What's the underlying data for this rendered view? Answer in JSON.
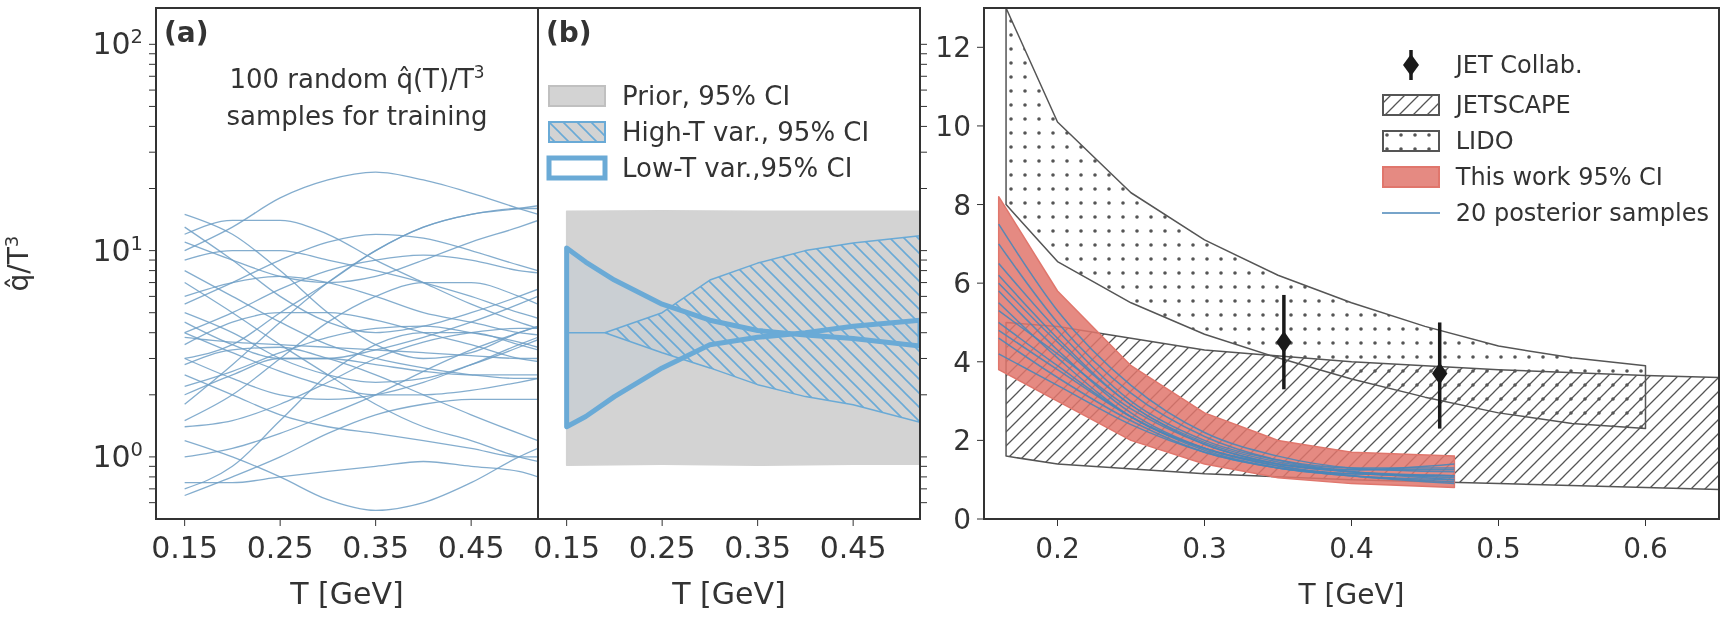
{
  "chart_data": [
    {
      "type": "line",
      "title": "(a)",
      "annotations": [
        "100 random q̂(T)/T$^{3}$",
        "samples for training"
      ],
      "xlabel": "T [GeV]",
      "ylabel": "q̂/T$^{3}$",
      "log": true,
      "legend": false,
      "x": [
        0.15,
        0.2,
        0.25,
        0.3,
        0.35,
        0.4,
        0.45,
        0.5,
        0.52
      ],
      "xlim": [
        0.12,
        0.52
      ],
      "xticks": [
        0.15,
        0.25,
        0.35,
        0.45
      ],
      "ylim": [
        0.5,
        150
      ],
      "yticks": [
        {
          "value": 1,
          "label": "10$^{0}$"
        },
        {
          "value": 10,
          "label": "10$^{1}$"
        },
        {
          "value": 100,
          "label": "10$^{2}$"
        },
        {
          "value": 0.6,
          "label": null
        },
        {
          "value": 0.7,
          "label": null
        },
        {
          "value": 0.8,
          "label": null
        },
        {
          "value": 0.9,
          "label": null
        },
        {
          "value": 2,
          "label": null
        },
        {
          "value": 3,
          "label": null
        },
        {
          "value": 4,
          "label": null
        },
        {
          "value": 5,
          "label": null
        },
        {
          "value": 6,
          "label": null
        },
        {
          "value": 7,
          "label": null
        },
        {
          "value": 8,
          "label": null
        },
        {
          "value": 9,
          "label": null
        },
        {
          "value": 20,
          "label": null
        },
        {
          "value": 30,
          "label": null
        },
        {
          "value": 40,
          "label": null
        },
        {
          "value": 50,
          "label": null
        },
        {
          "value": 60,
          "label": null
        },
        {
          "value": 70,
          "label": null
        },
        {
          "value": 80,
          "label": null
        },
        {
          "value": 90,
          "label": null
        }
      ],
      "series": [
        {
          "color": "#6f9fc6",
          "values": [
            4,
            5,
            6.5,
            8,
            9,
            9.5,
            9,
            8,
            7.8
          ]
        },
        {
          "color": "#6f9fc6",
          "values": [
            15,
            12,
            8,
            5,
            3.5,
            3,
            3.2,
            4,
            4.3
          ]
        },
        {
          "color": "#6f9fc6",
          "values": [
            0.7,
            0.9,
            1.5,
            2.5,
            3.5,
            4,
            4,
            3.5,
            3.3
          ]
        },
        {
          "color": "#6f9fc6",
          "values": [
            2,
            2.5,
            3,
            3,
            2.8,
            2.6,
            2.5,
            2.5,
            2.5
          ]
        },
        {
          "color": "#6f9fc6",
          "values": [
            10,
            13,
            18,
            22,
            24,
            22,
            19,
            16,
            15
          ]
        },
        {
          "color": "#6f9fc6",
          "values": [
            1.2,
            1,
            0.8,
            0.62,
            0.55,
            0.6,
            0.75,
            1,
            1.1
          ]
        },
        {
          "color": "#6f9fc6",
          "values": [
            5,
            4,
            3,
            2.5,
            2.3,
            2.4,
            2.8,
            3.4,
            3.7
          ]
        },
        {
          "color": "#6f9fc6",
          "values": [
            3,
            3.5,
            5,
            7,
            10,
            13,
            15,
            16,
            16
          ]
        },
        {
          "color": "#6f9fc6",
          "values": [
            8,
            6,
            4.5,
            3.5,
            3,
            2.7,
            2.5,
            2.4,
            2.4
          ]
        },
        {
          "color": "#6f9fc6",
          "values": [
            1.5,
            2,
            3,
            4.5,
            6,
            7,
            7,
            6,
            5.5
          ]
        },
        {
          "color": "#6f9fc6",
          "values": [
            0.65,
            0.8,
            1,
            1.3,
            1.6,
            1.8,
            1.9,
            1.9,
            1.9
          ]
        },
        {
          "color": "#6f9fc6",
          "values": [
            12,
            14,
            14,
            12,
            9,
            7,
            5.5,
            4.5,
            4.2
          ]
        },
        {
          "color": "#6f9fc6",
          "values": [
            4.5,
            3.5,
            3,
            3,
            3.3,
            3.8,
            4.5,
            5.5,
            6
          ]
        },
        {
          "color": "#6f9fc6",
          "values": [
            2.5,
            2,
            1.6,
            1.4,
            1.3,
            1.2,
            1.1,
            1,
            1
          ]
        },
        {
          "color": "#6f9fc6",
          "values": [
            6,
            7,
            7.5,
            7,
            6,
            5,
            4.5,
            4,
            3.9
          ]
        },
        {
          "color": "#6f9fc6",
          "values": [
            3.5,
            4.5,
            5,
            5,
            4.6,
            4,
            3.5,
            3,
            2.9
          ]
        },
        {
          "color": "#6f9fc6",
          "values": [
            1.8,
            2.8,
            4.5,
            7,
            10,
            13,
            15,
            16,
            16.5
          ]
        },
        {
          "color": "#6f9fc6",
          "values": [
            9,
            10,
            10,
            9,
            8,
            7,
            6,
            5,
            4.7
          ]
        },
        {
          "color": "#6f9fc6",
          "values": [
            4,
            3.2,
            2.6,
            2.2,
            2,
            2,
            2.1,
            2.3,
            2.4
          ]
        },
        {
          "color": "#6f9fc6",
          "values": [
            1,
            1.1,
            1.3,
            1.6,
            2,
            2.6,
            3.3,
            4,
            4.3
          ]
        },
        {
          "color": "#6f9fc6",
          "values": [
            7,
            5,
            3.5,
            2.5,
            1.8,
            1.4,
            1.2,
            1,
            0.95
          ]
        },
        {
          "color": "#6f9fc6",
          "values": [
            2.2,
            2.6,
            3.2,
            3.8,
            4.2,
            4.3,
            4,
            3.6,
            3.4
          ]
        },
        {
          "color": "#6f9fc6",
          "values": [
            13,
            9,
            6,
            4.5,
            4,
            4.3,
            5,
            6,
            6.5
          ]
        },
        {
          "color": "#6f9fc6",
          "values": [
            0.75,
            0.75,
            0.8,
            0.85,
            0.9,
            0.95,
            0.9,
            0.85,
            0.8
          ]
        },
        {
          "color": "#6f9fc6",
          "values": [
            3,
            2.4,
            2,
            1.9,
            2,
            2.3,
            2.8,
            3.5,
            3.8
          ]
        },
        {
          "color": "#6f9fc6",
          "values": [
            5.5,
            7,
            9,
            11,
            12,
            11.5,
            10,
            8.5,
            8
          ]
        },
        {
          "color": "#6f9fc6",
          "values": [
            1.4,
            1.5,
            1.8,
            2.3,
            3,
            3.6,
            4,
            4.2,
            4.2
          ]
        },
        {
          "color": "#6f9fc6",
          "values": [
            3.8,
            3.6,
            3.5,
            3.4,
            3.3,
            3.2,
            3.1,
            3,
            3
          ]
        },
        {
          "color": "#6f9fc6",
          "values": [
            2.8,
            3.3,
            3.4,
            3,
            2.5,
            2,
            1.6,
            1.3,
            1.2
          ]
        },
        {
          "color": "#6f9fc6",
          "values": [
            11,
            9,
            7.5,
            7,
            7.5,
            9,
            11,
            13,
            14
          ]
        }
      ]
    },
    {
      "type": "area",
      "title": "(b)",
      "xlabel": "T [GeV]",
      "log": true,
      "legend": "top left",
      "tick_labels": "x",
      "xlim": [
        0.12,
        0.52
      ],
      "xticks": [
        0.15,
        0.25,
        0.35,
        0.45
      ],
      "ylim": [
        0.5,
        150
      ],
      "yticks": [
        1,
        10,
        100,
        {
          "value": 0.6,
          "label": null
        },
        {
          "value": 0.7,
          "label": null
        },
        {
          "value": 0.8,
          "label": null
        },
        {
          "value": 0.9,
          "label": null
        },
        {
          "value": 2,
          "label": null
        },
        {
          "value": 3,
          "label": null
        },
        {
          "value": 4,
          "label": null
        },
        {
          "value": 5,
          "label": null
        },
        {
          "value": 6,
          "label": null
        },
        {
          "value": 7,
          "label": null
        },
        {
          "value": 8,
          "label": null
        },
        {
          "value": 9,
          "label": null
        },
        {
          "value": 20,
          "label": null
        },
        {
          "value": 30,
          "label": null
        },
        {
          "value": 40,
          "label": null
        },
        {
          "value": 50,
          "label": null
        },
        {
          "value": 60,
          "label": null
        },
        {
          "value": 70,
          "label": null
        },
        {
          "value": 80,
          "label": null
        },
        {
          "value": 90,
          "label": null
        }
      ],
      "series": [
        {
          "name": "Prior, 95% CI",
          "color": "#d3d3d3",
          "x": [
            0.15,
            0.25,
            0.35,
            0.45,
            0.52
          ],
          "values": [
            null,
            null,
            null,
            null,
            null
          ],
          "lower": [
            0.91,
            0.92,
            0.91,
            0.92,
            0.92
          ],
          "upper": [
            15.5,
            15.6,
            15.5,
            15.5,
            15.5
          ]
        },
        {
          "name": "High-T var., 95% CI",
          "color": "#6aaad6",
          "x": [
            0.15,
            0.19,
            0.25,
            0.3,
            0.35,
            0.4,
            0.45,
            0.52
          ],
          "values": [
            null,
            null,
            null,
            null,
            null,
            null,
            null,
            null
          ],
          "lower": [
            4,
            4,
            3.2,
            2.7,
            2.24,
            1.96,
            1.79,
            1.47
          ],
          "upper": [
            4,
            4,
            5,
            7.2,
            8.7,
            10,
            10.9,
            11.8
          ]
        },
        {
          "name": "Low-T var.,95% CI",
          "color": "#6aaad6",
          "x": [
            0.15,
            0.17,
            0.2,
            0.25,
            0.3,
            0.35,
            0.4,
            0.45,
            0.52
          ],
          "values": [
            null,
            null,
            null,
            null,
            null,
            null,
            null,
            null,
            null
          ],
          "lower": [
            1.4,
            1.57,
            1.96,
            2.7,
            3.5,
            3.8,
            4,
            4.3,
            4.6
          ],
          "upper": [
            10.3,
            8.8,
            7.2,
            5.5,
            4.6,
            4.1,
            3.9,
            3.75,
            3.45
          ]
        }
      ]
    },
    {
      "type": "area",
      "xlabel": "T [GeV]",
      "legend": "top right",
      "xlim": [
        0.15,
        0.65
      ],
      "xticks": [
        0.2,
        0.3,
        0.4,
        0.5,
        0.6
      ],
      "ylim": [
        0,
        13
      ],
      "yticks": [
        0,
        2,
        4,
        6,
        8,
        10,
        12
      ],
      "series": [
        {
          "type": "scatter",
          "name": "JET Collab.",
          "color": "#1a1a1a",
          "marker": "diamond",
          "x": [
            0.354,
            0.46
          ],
          "values": [
            4.5,
            3.7
          ],
          "errors": [
            [
              3.3,
              5.7
            ],
            [
              2.3,
              5.0
            ]
          ]
        },
        {
          "name": "JETSCAPE",
          "color": "#555555",
          "x": [
            0.165,
            0.2,
            0.3,
            0.4,
            0.5,
            0.6,
            0.65
          ],
          "values": [
            null,
            null,
            null,
            null,
            null,
            null,
            null
          ],
          "lower": [
            1.6,
            1.4,
            1.15,
            1.0,
            0.9,
            0.8,
            0.75
          ],
          "upper": [
            5.0,
            4.9,
            4.3,
            4.0,
            3.8,
            3.65,
            3.6
          ]
        },
        {
          "name": "LIDO",
          "color": "#555555",
          "x": [
            0.165,
            0.2,
            0.25,
            0.3,
            0.35,
            0.4,
            0.45,
            0.5,
            0.55,
            0.6
          ],
          "values": [
            null,
            null,
            null,
            null,
            null,
            null,
            null,
            null,
            null,
            null
          ],
          "lower": [
            8.0,
            6.55,
            5.5,
            4.7,
            4.1,
            3.56,
            3.1,
            2.7,
            2.43,
            2.3
          ],
          "upper": [
            13,
            10.1,
            8.3,
            7.1,
            6.2,
            5.5,
            4.9,
            4.4,
            4.1,
            3.9
          ]
        },
        {
          "name": "This work 95% CI",
          "color": "#e0766c",
          "x": [
            0.16,
            0.2,
            0.25,
            0.3,
            0.35,
            0.4,
            0.47
          ],
          "values": [
            null,
            null,
            null,
            null,
            null,
            null,
            null
          ],
          "lower": [
            3.8,
            3.0,
            2.0,
            1.4,
            1.05,
            0.9,
            0.8
          ],
          "upper": [
            8.2,
            5.8,
            3.9,
            2.7,
            2.0,
            1.7,
            1.6
          ]
        },
        {
          "type": "line",
          "name": "20 posterior samples",
          "color": "#4a86b8",
          "x": [
            0.16,
            0.2,
            0.25,
            0.3,
            0.35,
            0.4,
            0.47
          ],
          "values": [
            6.0,
            4.5,
            2.9,
            1.9,
            1.4,
            1.2,
            1.1
          ]
        },
        {
          "type": "line",
          "color": "#4a86b8",
          "x": [
            0.16,
            0.2,
            0.25,
            0.3,
            0.35,
            0.4,
            0.47
          ],
          "values": [
            5.3,
            4.2,
            2.8,
            1.9,
            1.4,
            1.2,
            1.05
          ]
        },
        {
          "type": "line",
          "color": "#4a86b8",
          "x": [
            0.16,
            0.2,
            0.25,
            0.3,
            0.35,
            0.4,
            0.47
          ],
          "values": [
            7.5,
            5.3,
            3.4,
            2.2,
            1.6,
            1.3,
            1.2
          ]
        },
        {
          "type": "line",
          "color": "#4a86b8",
          "x": [
            0.16,
            0.2,
            0.25,
            0.3,
            0.35,
            0.4,
            0.47
          ],
          "values": [
            4.6,
            3.6,
            2.5,
            1.7,
            1.3,
            1.1,
            1.0
          ]
        },
        {
          "type": "line",
          "color": "#4a86b8",
          "x": [
            0.16,
            0.2,
            0.25,
            0.3,
            0.35,
            0.4,
            0.47
          ],
          "values": [
            5.5,
            4.1,
            2.6,
            1.8,
            1.35,
            1.15,
            1.1
          ]
        },
        {
          "type": "line",
          "color": "#4a86b8",
          "x": [
            0.16,
            0.2,
            0.25,
            0.3,
            0.35,
            0.4,
            0.47
          ],
          "values": [
            6.5,
            4.8,
            3.0,
            2.0,
            1.5,
            1.3,
            1.3
          ]
        },
        {
          "type": "line",
          "color": "#4a86b8",
          "x": [
            0.16,
            0.2,
            0.25,
            0.3,
            0.35,
            0.4,
            0.47
          ],
          "values": [
            4.2,
            3.4,
            2.4,
            1.7,
            1.3,
            1.15,
            1.1
          ]
        },
        {
          "type": "line",
          "color": "#4a86b8",
          "x": [
            0.16,
            0.2,
            0.25,
            0.3,
            0.35,
            0.4,
            0.47
          ],
          "values": [
            5.0,
            3.9,
            2.6,
            1.75,
            1.3,
            1.1,
            0.95
          ]
        },
        {
          "type": "line",
          "color": "#4a86b8",
          "x": [
            0.16,
            0.2,
            0.25,
            0.3,
            0.35,
            0.4,
            0.47
          ],
          "values": [
            7.0,
            5.0,
            3.2,
            2.1,
            1.5,
            1.25,
            1.4
          ]
        },
        {
          "type": "line",
          "color": "#4a86b8",
          "x": [
            0.16,
            0.2,
            0.25,
            0.3,
            0.35,
            0.4,
            0.47
          ],
          "values": [
            5.8,
            4.3,
            2.7,
            1.8,
            1.35,
            1.1,
            0.9
          ]
        },
        {
          "type": "line",
          "color": "#4a86b8",
          "x": [
            0.16,
            0.2,
            0.25,
            0.3,
            0.35,
            0.4,
            0.47
          ],
          "values": [
            4.8,
            3.8,
            2.6,
            1.8,
            1.4,
            1.25,
            1.25
          ]
        },
        {
          "type": "line",
          "color": "#4a86b8",
          "x": [
            0.16,
            0.2,
            0.25,
            0.3,
            0.35,
            0.4,
            0.47
          ],
          "values": [
            6.2,
            4.6,
            2.9,
            1.95,
            1.45,
            1.2,
            1.0
          ]
        }
      ]
    }
  ]
}
